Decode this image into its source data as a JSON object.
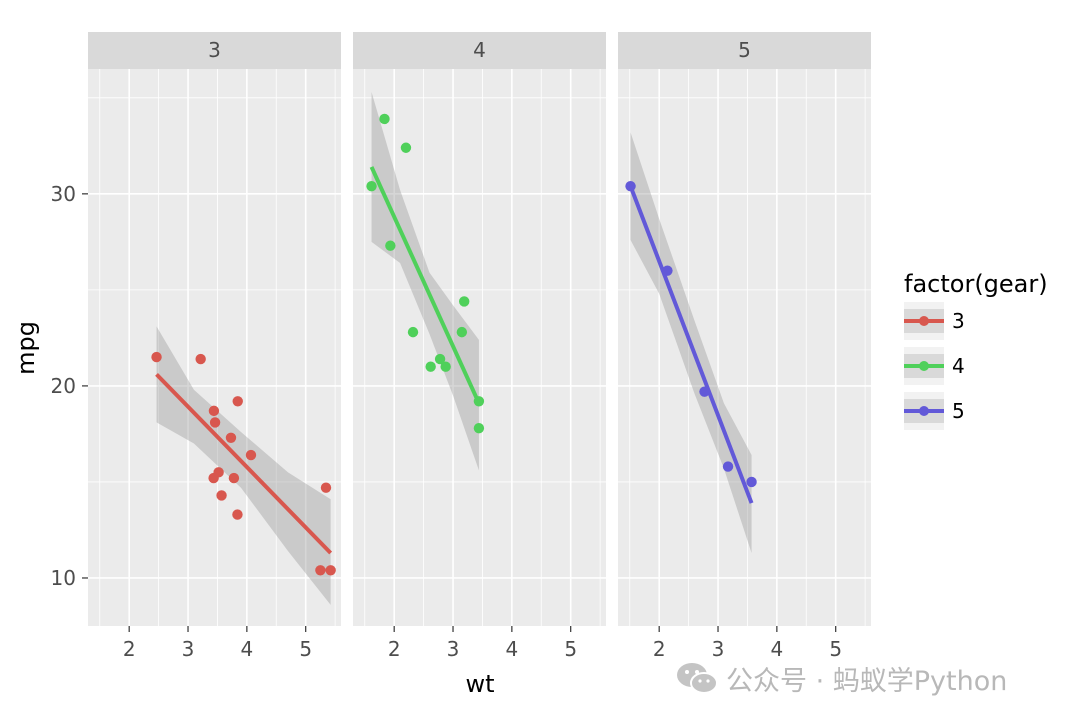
{
  "chart_data": {
    "type": "scatter",
    "facet_variable": "gear",
    "x_var": "wt",
    "y_var": "mpg",
    "xlabel": "wt",
    "ylabel": "mpg",
    "xlim": [
      1.3,
      5.6
    ],
    "ylim": [
      7.5,
      36.5
    ],
    "xticks": [
      2,
      3,
      4,
      5
    ],
    "yticks": [
      10,
      20,
      30
    ],
    "grid": true,
    "legend": {
      "title": "factor(gear)",
      "placement": "right"
    },
    "panels": [
      {
        "label": "3",
        "color": "#d8574e",
        "points": [
          [
            2.465,
            21.5
          ],
          [
            3.215,
            21.4
          ],
          [
            3.44,
            18.7
          ],
          [
            3.46,
            18.1
          ],
          [
            3.57,
            14.3
          ],
          [
            4.07,
            16.4
          ],
          [
            3.73,
            17.3
          ],
          [
            3.78,
            15.2
          ],
          [
            5.25,
            10.4
          ],
          [
            5.424,
            10.4
          ],
          [
            5.345,
            14.7
          ],
          [
            3.52,
            15.5
          ],
          [
            3.435,
            15.2
          ],
          [
            3.84,
            13.3
          ],
          [
            3.845,
            19.2
          ]
        ],
        "fit": {
          "x": [
            2.465,
            5.424
          ],
          "y": [
            20.6,
            11.3
          ]
        },
        "band": {
          "x": [
            2.465,
            3.1,
            3.9,
            4.7,
            5.424
          ],
          "upper": [
            23.1,
            19.8,
            17.6,
            15.5,
            14.1
          ],
          "lower": [
            18.1,
            17.0,
            14.7,
            11.4,
            8.6
          ]
        }
      },
      {
        "label": "4",
        "color": "#4fd05a",
        "points": [
          [
            2.62,
            21.0
          ],
          [
            2.875,
            21.0
          ],
          [
            2.32,
            22.8
          ],
          [
            3.19,
            24.4
          ],
          [
            3.15,
            22.8
          ],
          [
            3.44,
            19.2
          ],
          [
            3.44,
            17.8
          ],
          [
            2.2,
            32.4
          ],
          [
            1.615,
            30.4
          ],
          [
            1.835,
            33.9
          ],
          [
            1.935,
            27.3
          ],
          [
            2.78,
            21.4
          ]
        ],
        "fit": {
          "x": [
            1.615,
            3.44
          ],
          "y": [
            31.4,
            19.1
          ]
        },
        "band": {
          "x": [
            1.615,
            2.1,
            2.6,
            3.0,
            3.44
          ],
          "upper": [
            35.3,
            30.2,
            25.9,
            24.2,
            22.4
          ],
          "lower": [
            27.5,
            26.4,
            22.7,
            19.5,
            15.6
          ]
        }
      },
      {
        "label": "5",
        "color": "#6259d8",
        "points": [
          [
            2.14,
            26.0
          ],
          [
            1.513,
            30.4
          ],
          [
            3.17,
            15.8
          ],
          [
            2.77,
            19.7
          ],
          [
            3.57,
            15.0
          ]
        ],
        "fit": {
          "x": [
            1.513,
            3.57
          ],
          "y": [
            30.4,
            13.9
          ]
        },
        "band": {
          "x": [
            1.513,
            2.0,
            2.6,
            3.1,
            3.57
          ],
          "upper": [
            33.2,
            28.7,
            23.4,
            19.1,
            16.4
          ],
          "lower": [
            27.6,
            24.8,
            19.6,
            15.7,
            11.3
          ]
        }
      }
    ]
  },
  "watermark": {
    "text": "公众号 · 蚂蚁学Python",
    "icon": "wechat-icon"
  },
  "colors": {
    "panel_bg": "#ebebeb",
    "strip_bg": "#d9d9d9",
    "grid": "#ffffff",
    "band": "#999999",
    "text": "#4d4d4d"
  }
}
